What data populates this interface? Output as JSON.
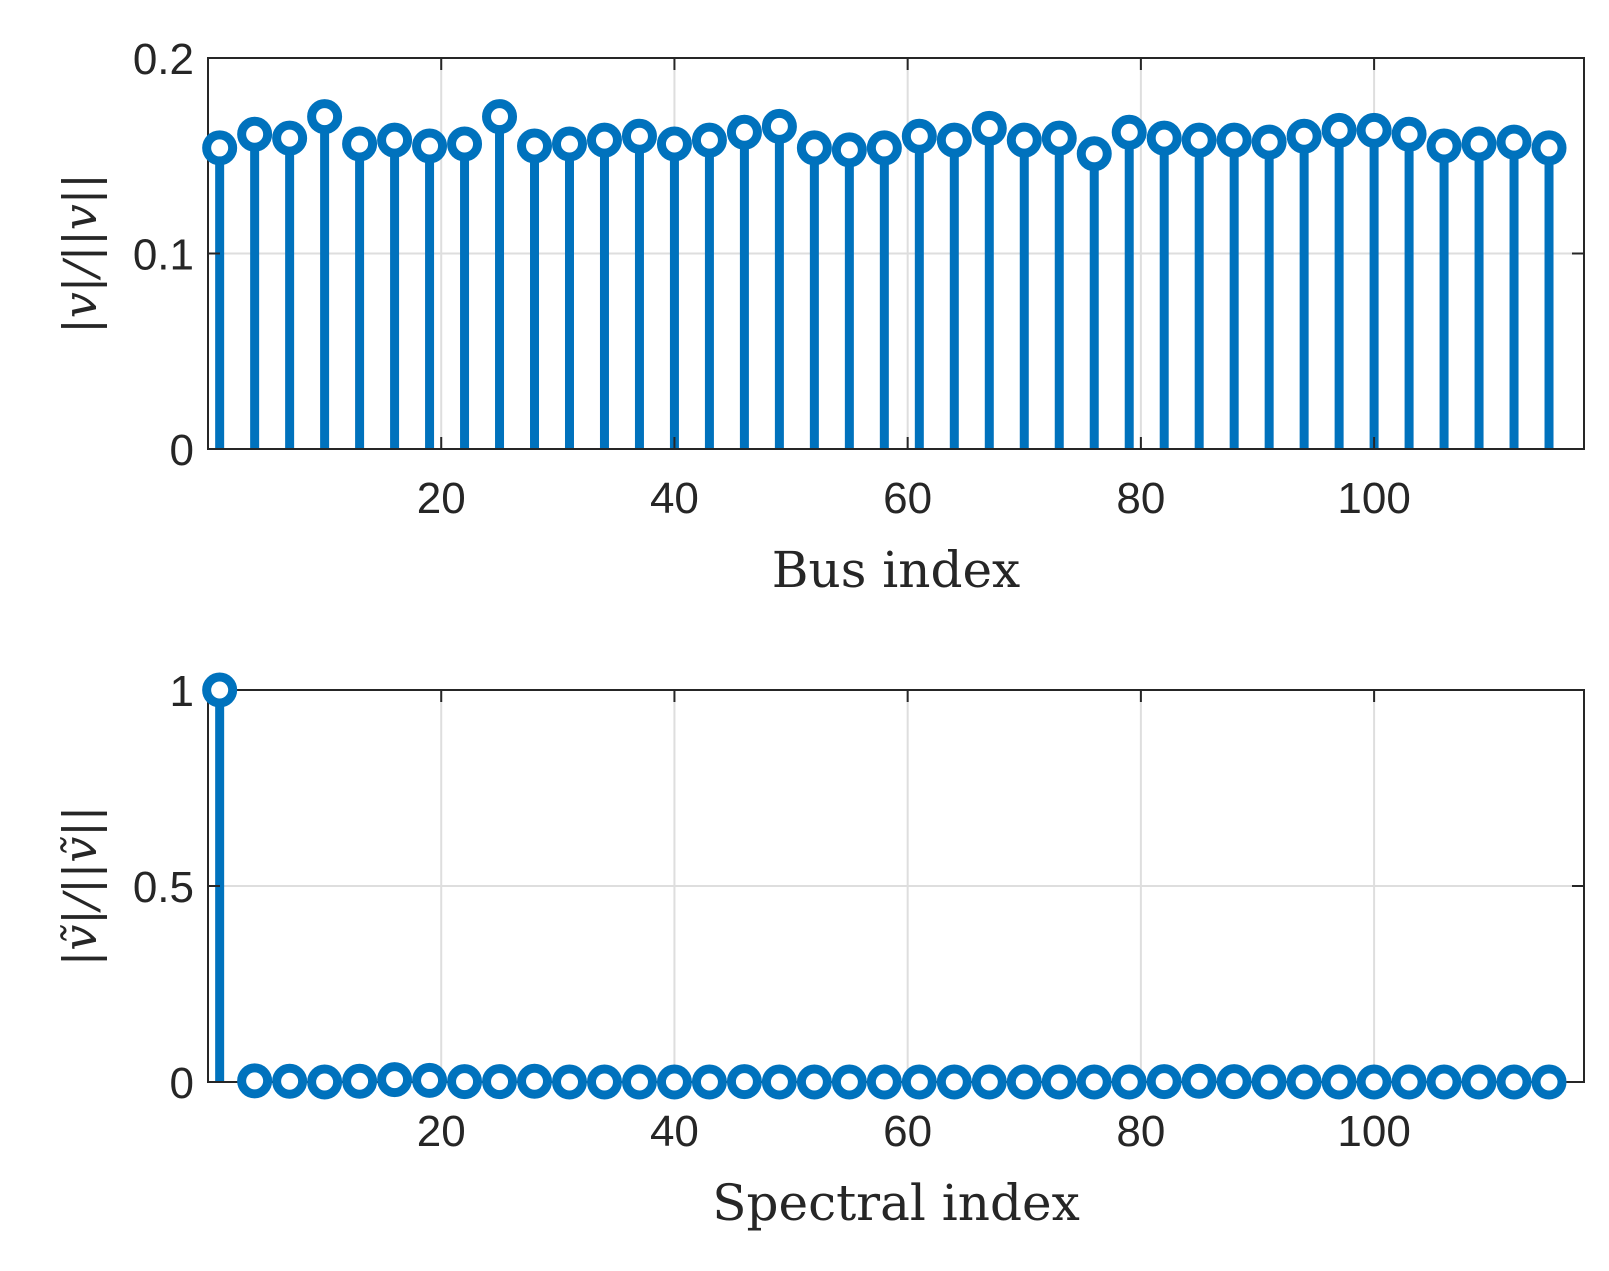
{
  "chart_data": [
    {
      "type": "stem",
      "xlabel": "Bus index",
      "ylabel": "|v|/||v||",
      "xlim": [
        0,
        118
      ],
      "ylim": [
        0,
        0.2
      ],
      "xticks": [
        20,
        40,
        60,
        80,
        100
      ],
      "xtick_labels": [
        "20",
        "40",
        "60",
        "80",
        "100"
      ],
      "yticks": [
        0,
        0.1,
        0.2
      ],
      "ytick_labels": [
        "0",
        "0.1",
        "0.2"
      ],
      "grid": true,
      "color": "#0072BD",
      "series": [
        {
          "x": [
            1,
            4,
            7,
            10,
            13,
            16,
            19,
            22,
            25,
            28,
            31,
            34,
            37,
            40,
            43,
            46,
            49,
            52,
            55,
            58,
            61,
            64,
            67,
            70,
            73,
            76,
            79,
            82,
            85,
            88,
            91,
            94,
            97,
            100,
            103,
            106,
            109,
            112,
            115
          ],
          "values": [
            0.154,
            0.161,
            0.159,
            0.17,
            0.156,
            0.158,
            0.155,
            0.156,
            0.17,
            0.155,
            0.156,
            0.158,
            0.16,
            0.156,
            0.158,
            0.162,
            0.165,
            0.154,
            0.153,
            0.154,
            0.16,
            0.158,
            0.164,
            0.158,
            0.159,
            0.151,
            0.162,
            0.159,
            0.158,
            0.158,
            0.157,
            0.16,
            0.163,
            0.163,
            0.161,
            0.155,
            0.156,
            0.157,
            0.154
          ]
        }
      ]
    },
    {
      "type": "stem",
      "xlabel": "Spectral index",
      "ylabel": "|ṽ|/||ṽ||",
      "xlim": [
        0,
        118
      ],
      "ylim": [
        0,
        1
      ],
      "xticks": [
        20,
        40,
        60,
        80,
        100
      ],
      "xtick_labels": [
        "20",
        "40",
        "60",
        "80",
        "100"
      ],
      "yticks": [
        0,
        0.5,
        1
      ],
      "ytick_labels": [
        "0",
        "0.5",
        "1"
      ],
      "grid": true,
      "color": "#0072BD",
      "series": [
        {
          "x": [
            1,
            4,
            7,
            10,
            13,
            16,
            19,
            22,
            25,
            28,
            31,
            34,
            37,
            40,
            43,
            46,
            49,
            52,
            55,
            58,
            61,
            64,
            67,
            70,
            73,
            76,
            79,
            82,
            85,
            88,
            91,
            94,
            97,
            100,
            103,
            106,
            109,
            112,
            115
          ],
          "values": [
            1.0,
            0.003,
            0.002,
            0.0,
            0.002,
            0.006,
            0.004,
            0.001,
            0.001,
            0.002,
            0.0,
            0.0,
            0.0,
            0.0,
            0.0,
            0.001,
            0.0,
            0.0,
            0.0,
            0.0,
            0.0,
            0.0,
            0.0,
            0.0,
            0.0,
            0.0,
            0.0,
            0.001,
            0.002,
            0.001,
            0.0,
            0.0,
            0.0,
            0.0,
            0.0,
            0.0,
            0.0,
            0.0,
            0.0
          ]
        }
      ]
    }
  ]
}
